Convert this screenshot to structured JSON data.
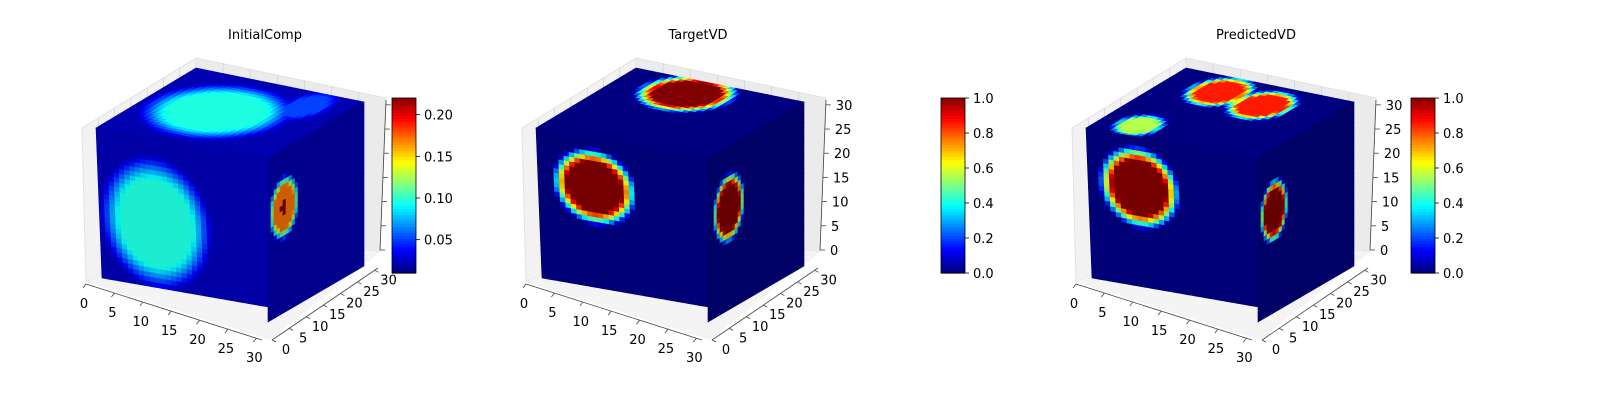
{
  "figure": {
    "colormap": "jet",
    "background": "#ffffff",
    "pane_color": "#f2f2f2",
    "grid_color": "#d4d4d4"
  },
  "chart_data": [
    {
      "type": "heatmap",
      "subtype": "3d-voxel-cube",
      "title": "InitialComp",
      "dims": [
        32,
        32,
        32
      ],
      "axes": {
        "x_ticks": [
          "0",
          "5",
          "10",
          "15",
          "20",
          "25",
          "30"
        ],
        "y_ticks": [
          "0",
          "5",
          "10",
          "15",
          "20",
          "25",
          "30"
        ],
        "z_ticks": []
      },
      "colorbar": {
        "shown": true,
        "range": [
          0.01,
          0.22
        ],
        "ticks": [
          {
            "value": 0.05,
            "label": "0.05"
          },
          {
            "value": 0.1,
            "label": "0.10"
          },
          {
            "value": 0.15,
            "label": "0.15"
          },
          {
            "value": 0.2,
            "label": "0.20"
          }
        ]
      },
      "faces": {
        "front": {
          "background": 0.02,
          "blobs": [
            {
              "cx": 0.33,
              "cy": 0.57,
              "rx": 0.33,
              "ry": 0.45,
              "v": 0.095
            }
          ]
        },
        "top": {
          "background": 0.02,
          "blobs": [
            {
              "cx": 0.42,
              "cy": 0.5,
              "rx": 0.4,
              "ry": 0.42,
              "v": 0.095
            },
            {
              "cx": 0.78,
              "cy": 0.2,
              "rx": 0.13,
              "ry": 0.25,
              "v": 0.05
            }
          ]
        },
        "side": {
          "background": 0.02,
          "blobs": [
            {
              "cx": 0.17,
              "cy": 0.36,
              "rx": 0.16,
              "ry": 0.2,
              "v": 0.17
            },
            {
              "cx": 0.17,
              "cy": 0.36,
              "rx": 0.045,
              "ry": 0.05,
              "v": 0.22
            }
          ]
        }
      }
    },
    {
      "type": "heatmap",
      "subtype": "3d-voxel-cube",
      "title": "TargetVD",
      "dims": [
        32,
        32,
        32
      ],
      "axes": {
        "x_ticks": [
          "0",
          "5",
          "10",
          "15",
          "20",
          "25",
          "30"
        ],
        "y_ticks": [
          "0",
          "5",
          "10",
          "15",
          "20",
          "25",
          "30"
        ],
        "z_ticks": [
          "0",
          "5",
          "10",
          "15",
          "20",
          "25",
          "30"
        ]
      },
      "colorbar": {
        "shown": true,
        "range": [
          0.0,
          1.0
        ],
        "ticks": [
          {
            "value": 0.0,
            "label": "0.0"
          },
          {
            "value": 0.2,
            "label": "0.2"
          },
          {
            "value": 0.4,
            "label": "0.4"
          },
          {
            "value": 0.6,
            "label": "0.6"
          },
          {
            "value": 0.8,
            "label": "0.8"
          },
          {
            "value": 1.0,
            "label": "1.0"
          }
        ]
      },
      "faces": {
        "front": {
          "background": 0.0,
          "blobs": [
            {
              "cx": 0.33,
              "cy": 0.33,
              "rx": 0.25,
              "ry": 0.26,
              "v": 1.0
            }
          ]
        },
        "top": {
          "background": 0.0,
          "blobs": [
            {
              "cx": 0.42,
              "cy": 0.2,
              "rx": 0.27,
              "ry": 0.28,
              "v": 1.0
            }
          ]
        },
        "side": {
          "background": 0.0,
          "blobs": [
            {
              "cx": 0.22,
              "cy": 0.38,
              "rx": 0.17,
              "ry": 0.22,
              "v": 1.0
            }
          ]
        }
      }
    },
    {
      "type": "heatmap",
      "subtype": "3d-voxel-cube",
      "title": "PredictedVD",
      "dims": [
        32,
        32,
        32
      ],
      "axes": {
        "x_ticks": [
          "0",
          "5",
          "10",
          "15",
          "20",
          "25",
          "30"
        ],
        "y_ticks": [
          "0",
          "5",
          "10",
          "15",
          "20",
          "25",
          "30"
        ],
        "z_ticks": [
          "0",
          "5",
          "10",
          "15",
          "20",
          "25",
          "30"
        ]
      },
      "colorbar": {
        "shown": true,
        "range": [
          0.0,
          1.0
        ],
        "ticks": [
          {
            "value": 0.0,
            "label": "0.0"
          },
          {
            "value": 0.2,
            "label": "0.2"
          },
          {
            "value": 0.4,
            "label": "0.4"
          },
          {
            "value": 0.6,
            "label": "0.6"
          },
          {
            "value": 0.8,
            "label": "0.8"
          },
          {
            "value": 1.0,
            "label": "1.0"
          }
        ]
      },
      "faces": {
        "front": {
          "background": 0.0,
          "blobs": [
            {
              "cx": 0.3,
              "cy": 0.34,
              "rx": 0.24,
              "ry": 0.28,
              "v": 1.0
            }
          ]
        },
        "top": {
          "background": 0.0,
          "blobs": [
            {
              "cx": 0.33,
              "cy": 0.22,
              "rx": 0.18,
              "ry": 0.24,
              "v": 0.85
            },
            {
              "cx": 0.62,
              "cy": 0.28,
              "rx": 0.18,
              "ry": 0.24,
              "v": 0.85
            },
            {
              "cx": 0.22,
              "cy": 0.84,
              "rx": 0.14,
              "ry": 0.18,
              "v": 0.55
            }
          ]
        },
        "side": {
          "background": 0.0,
          "blobs": [
            {
              "cx": 0.17,
              "cy": 0.38,
              "rx": 0.15,
              "ry": 0.2,
              "v": 1.0
            }
          ]
        }
      }
    }
  ]
}
